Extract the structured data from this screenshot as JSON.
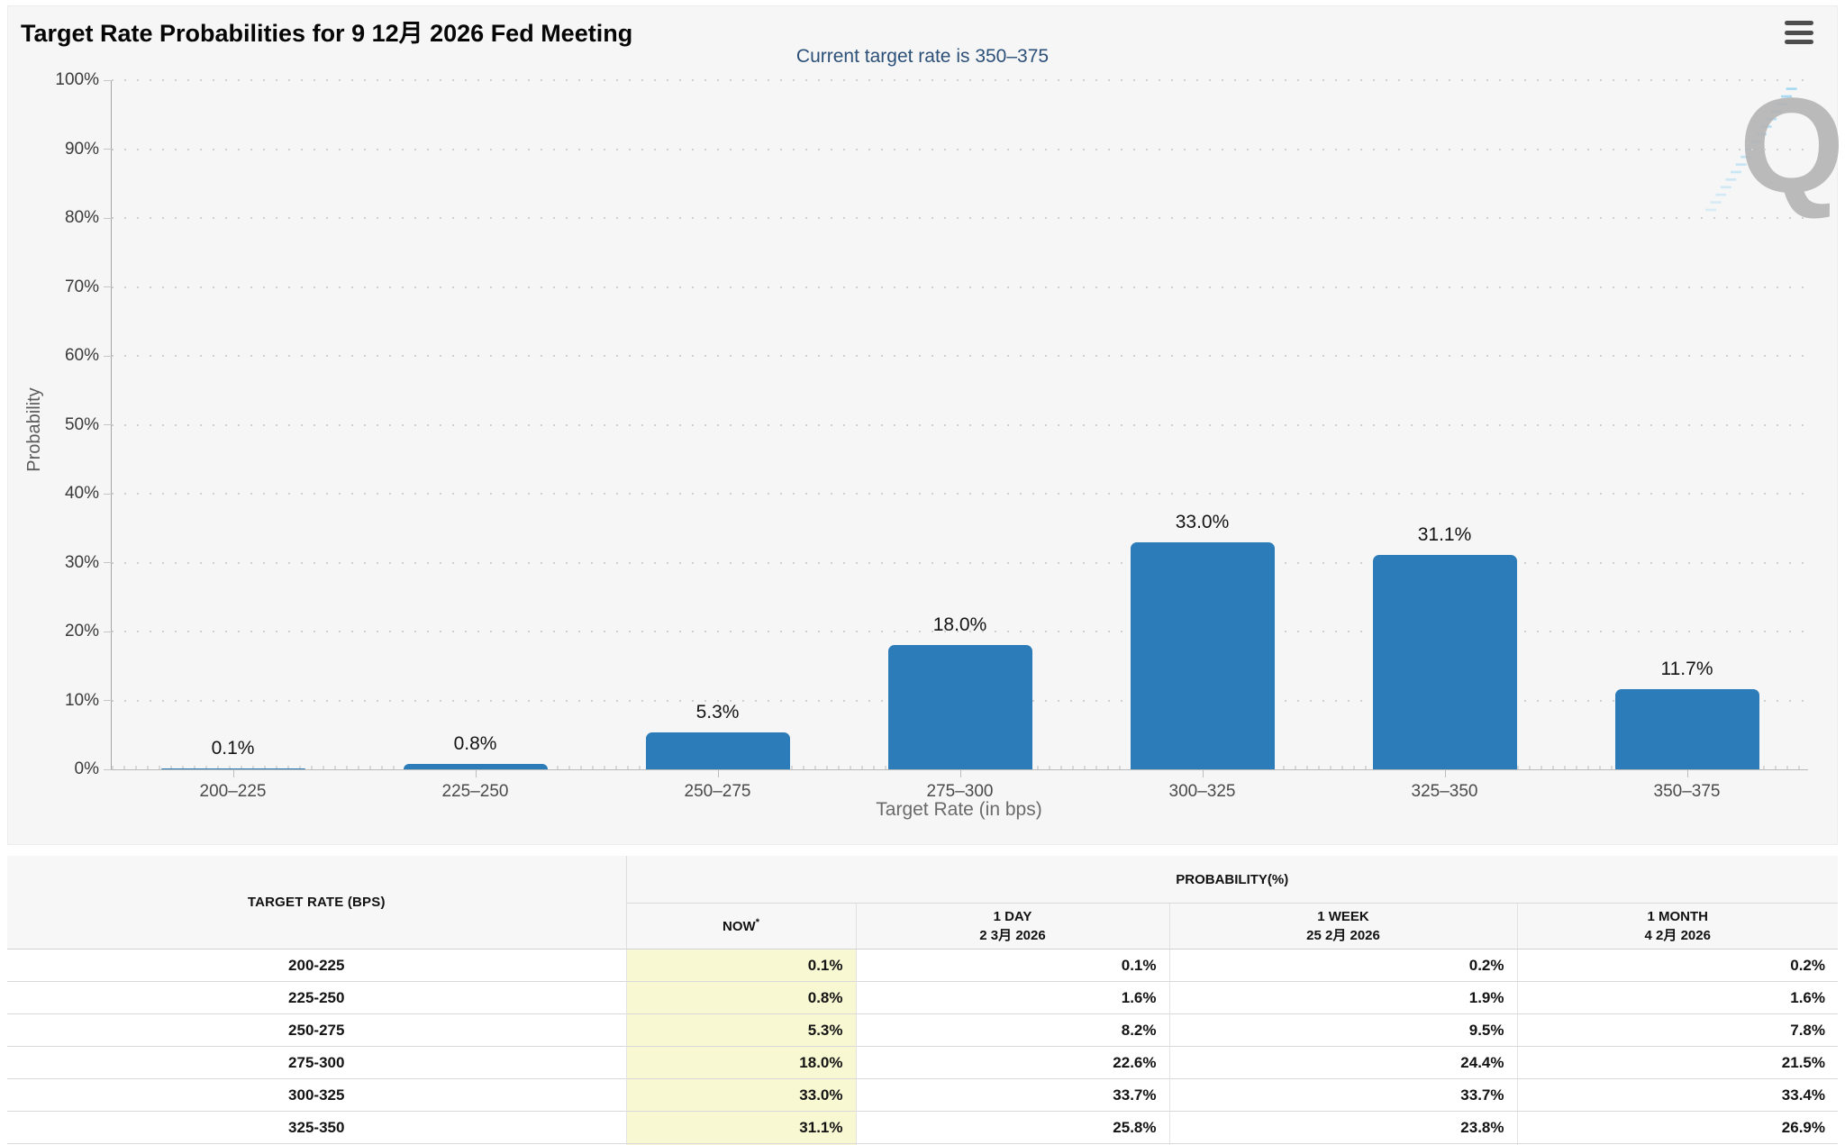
{
  "header": {
    "title": "Target Rate Probabilities for 9 12月 2026 Fed Meeting",
    "subtitle": "Current target rate is 350–375"
  },
  "colors": {
    "bar": "#2b7cb8",
    "subtitle_text": "#2c5078",
    "now_column_highlight": "#f8f8d2",
    "chart_background": "#f6f6f6"
  },
  "watermark": {
    "letter": "Q"
  },
  "chart_data": {
    "type": "bar",
    "title": "Target Rate Probabilities for 9 12月 2026 Fed Meeting",
    "subtitle": "Current target rate is 350–375",
    "categories": [
      "200–225",
      "225–250",
      "250–275",
      "275–300",
      "300–325",
      "325–350",
      "350–375"
    ],
    "values": [
      0.1,
      0.8,
      5.3,
      18.0,
      33.0,
      31.1,
      11.7
    ],
    "value_labels": [
      "0.1%",
      "0.8%",
      "5.3%",
      "18.0%",
      "33.0%",
      "31.1%",
      "11.7%"
    ],
    "xlabel": "Target Rate (in bps)",
    "ylabel": "Probability",
    "ylim": [
      0,
      100
    ],
    "ytick_step": 10,
    "ytick_suffix": "%",
    "grid": "dotted-horizontal",
    "legend": "none"
  },
  "table": {
    "rate_header": "TARGET RATE (BPS)",
    "group_header": "PROBABILITY(%)",
    "columns": [
      {
        "label": "NOW",
        "sup": "*",
        "sub": ""
      },
      {
        "label": "1 DAY",
        "sup": "",
        "sub": "2 3月 2026"
      },
      {
        "label": "1 WEEK",
        "sup": "",
        "sub": "25 2月 2026"
      },
      {
        "label": "1 MONTH",
        "sup": "",
        "sub": "4 2月 2026"
      }
    ],
    "rows": [
      {
        "rate": "200-225",
        "values": [
          "0.1%",
          "0.1%",
          "0.2%",
          "0.2%"
        ]
      },
      {
        "rate": "225-250",
        "values": [
          "0.8%",
          "1.6%",
          "1.9%",
          "1.6%"
        ]
      },
      {
        "rate": "250-275",
        "values": [
          "5.3%",
          "8.2%",
          "9.5%",
          "7.8%"
        ]
      },
      {
        "rate": "275-300",
        "values": [
          "18.0%",
          "22.6%",
          "24.4%",
          "21.5%"
        ]
      },
      {
        "rate": "300-325",
        "values": [
          "33.0%",
          "33.7%",
          "33.7%",
          "33.4%"
        ]
      },
      {
        "rate": "325-350",
        "values": [
          "31.1%",
          "25.8%",
          "23.8%",
          "26.9%"
        ]
      }
    ]
  }
}
